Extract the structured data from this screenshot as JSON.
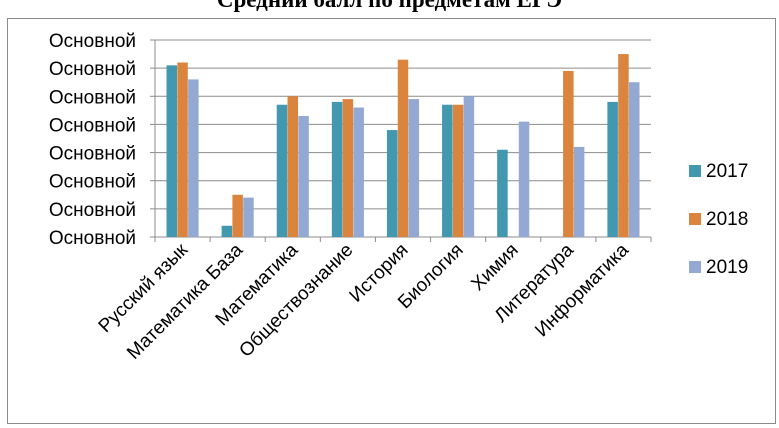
{
  "chart_data": {
    "type": "bar",
    "title": "Средний балл по предметам ЕГЭ",
    "xlabel": "",
    "ylabel": "",
    "y_tick_labels": [
      "Основной",
      "Основной",
      "Основной",
      "Основной",
      "Основной",
      "Основной",
      "Основной",
      "Основной"
    ],
    "ylim": [
      0,
      7
    ],
    "categories": [
      "Русский язык",
      "Математика База",
      "Математика",
      "Обществознание",
      "История",
      "Биология",
      "Химия",
      "Литература",
      "Информатика"
    ],
    "series": [
      {
        "name": "2017",
        "color": "#4198AF",
        "values": [
          6.1,
          0.4,
          4.7,
          4.8,
          3.8,
          4.7,
          3.1,
          0,
          4.8
        ]
      },
      {
        "name": "2018",
        "color": "#DB843D",
        "values": [
          6.2,
          1.5,
          5.0,
          4.9,
          6.3,
          4.7,
          0,
          5.9,
          6.5
        ]
      },
      {
        "name": "2019",
        "color": "#93A9D4",
        "values": [
          5.6,
          1.4,
          4.3,
          4.6,
          4.9,
          5.0,
          4.1,
          3.2,
          5.5
        ]
      }
    ],
    "grid": true,
    "legend": "right"
  }
}
